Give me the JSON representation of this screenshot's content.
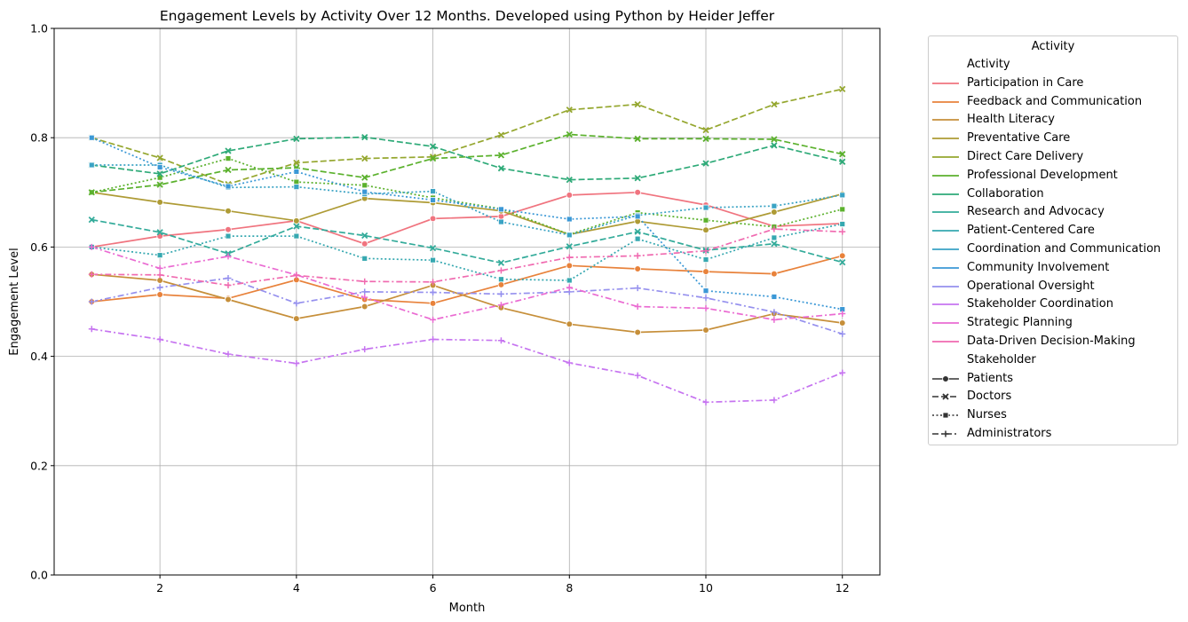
{
  "chart_data": {
    "type": "line",
    "title": "Engagement Levels by Activity Over 12 Months. Developed using Python by Heider Jeffer",
    "xlabel": "Month",
    "ylabel": "Engagement Level",
    "xlim": [
      0.45,
      12.55
    ],
    "ylim": [
      0.0,
      1.0
    ],
    "x_ticks": [
      2,
      4,
      6,
      8,
      10,
      12
    ],
    "y_ticks": [
      0.0,
      0.2,
      0.4,
      0.6,
      0.8,
      1.0
    ],
    "y_tick_labels": [
      "0.0",
      "0.2",
      "0.4",
      "0.6",
      "0.8",
      "1.0"
    ],
    "grid": true,
    "legend_placement": "outside-right",
    "legend": {
      "title": "Activity",
      "hue_heading": "Activity",
      "style_heading": "Stakeholder",
      "styles": [
        {
          "name": "Patients",
          "dash": "solid",
          "marker": "circle"
        },
        {
          "name": "Doctors",
          "dash": "dashed",
          "marker": "x"
        },
        {
          "name": "Nurses",
          "dash": "dotted",
          "marker": "square"
        },
        {
          "name": "Administrators",
          "dash": "dashdot",
          "marker": "plus"
        }
      ]
    },
    "x": [
      1,
      2,
      3,
      4,
      5,
      6,
      7,
      8,
      9,
      10,
      11,
      12
    ],
    "series": [
      {
        "name": "Participation in Care",
        "stakeholder": "Patients",
        "color": "#f0747f",
        "values": [
          0.6,
          0.62,
          0.632,
          0.648,
          0.606,
          0.652,
          0.656,
          0.695,
          0.7,
          0.677,
          0.638,
          0.643
        ]
      },
      {
        "name": "Feedback and Communication",
        "stakeholder": "Patients",
        "color": "#e8823b",
        "values": [
          0.5,
          0.513,
          0.506,
          0.54,
          0.504,
          0.497,
          0.531,
          0.566,
          0.56,
          0.555,
          0.551,
          0.584
        ]
      },
      {
        "name": "Health Literacy",
        "stakeholder": "Patients",
        "color": "#c68f3a",
        "values": [
          0.55,
          0.539,
          0.504,
          0.469,
          0.491,
          0.53,
          0.489,
          0.459,
          0.444,
          0.448,
          0.478,
          0.461
        ]
      },
      {
        "name": "Preventative Care",
        "stakeholder": "Patients",
        "color": "#ae9b35",
        "values": [
          0.7,
          0.682,
          0.666,
          0.648,
          0.689,
          0.681,
          0.666,
          0.623,
          0.647,
          0.631,
          0.664,
          0.697
        ]
      },
      {
        "name": "Direct Care Delivery",
        "stakeholder": "Doctors",
        "color": "#95a72f",
        "values": [
          0.8,
          0.763,
          0.715,
          0.754,
          0.762,
          0.765,
          0.805,
          0.851,
          0.861,
          0.814,
          0.861,
          0.889
        ]
      },
      {
        "name": "Professional Development",
        "stakeholder": "Nurses",
        "color": "#5bb12d",
        "values": [
          0.7,
          0.727,
          0.762,
          0.719,
          0.713,
          0.69,
          0.67,
          0.623,
          0.663,
          0.649,
          0.637,
          0.669
        ]
      },
      {
        "name": "Professional Development",
        "stakeholder": "Doctors",
        "color": "#5bb12d",
        "values": [
          0.7,
          0.714,
          0.741,
          0.745,
          0.727,
          0.762,
          0.768,
          0.806,
          0.798,
          0.798,
          0.797,
          0.77
        ]
      },
      {
        "name": "Collaboration",
        "stakeholder": "Doctors",
        "color": "#2eaa78",
        "values": [
          0.75,
          0.734,
          0.776,
          0.798,
          0.801,
          0.784,
          0.744,
          0.723,
          0.726,
          0.753,
          0.786,
          0.756
        ]
      },
      {
        "name": "Research and Advocacy",
        "stakeholder": "Doctors",
        "color": "#33ab9a",
        "values": [
          0.65,
          0.627,
          0.588,
          0.638,
          0.621,
          0.598,
          0.571,
          0.601,
          0.628,
          0.594,
          0.606,
          0.572
        ]
      },
      {
        "name": "Patient-Centered Care",
        "stakeholder": "Nurses",
        "color": "#36a8b0",
        "values": [
          0.6,
          0.585,
          0.62,
          0.62,
          0.579,
          0.576,
          0.541,
          0.539,
          0.615,
          0.577,
          0.617,
          0.642
        ]
      },
      {
        "name": "Coordination and Communication",
        "stakeholder": "Nurses",
        "color": "#3aa3c4",
        "values": [
          0.75,
          0.75,
          0.709,
          0.71,
          0.697,
          0.702,
          0.646,
          0.622,
          0.658,
          0.672,
          0.675,
          0.695
        ]
      },
      {
        "name": "Community Involvement",
        "stakeholder": "Nurses",
        "color": "#3b98d6",
        "values": [
          0.8,
          0.746,
          0.711,
          0.738,
          0.701,
          0.686,
          0.669,
          0.651,
          0.656,
          0.52,
          0.509,
          0.486
        ]
      },
      {
        "name": "Operational Oversight",
        "stakeholder": "Administrators",
        "color": "#9590ee",
        "values": [
          0.5,
          0.526,
          0.543,
          0.497,
          0.518,
          0.517,
          0.514,
          0.518,
          0.525,
          0.507,
          0.481,
          0.441
        ]
      },
      {
        "name": "Stakeholder Coordination",
        "stakeholder": "Administrators",
        "color": "#c674f0",
        "values": [
          0.45,
          0.431,
          0.404,
          0.387,
          0.413,
          0.431,
          0.429,
          0.388,
          0.365,
          0.316,
          0.32,
          0.37
        ]
      },
      {
        "name": "Strategic Planning",
        "stakeholder": "Administrators",
        "color": "#ea6bd2",
        "values": [
          0.6,
          0.561,
          0.583,
          0.549,
          0.508,
          0.467,
          0.494,
          0.526,
          0.491,
          0.488,
          0.467,
          0.478
        ]
      },
      {
        "name": "Data-Driven Decision-Making",
        "stakeholder": "Administrators",
        "color": "#f06ab0",
        "values": [
          0.55,
          0.549,
          0.53,
          0.548,
          0.537,
          0.536,
          0.557,
          0.581,
          0.584,
          0.593,
          0.633,
          0.628
        ]
      }
    ]
  }
}
